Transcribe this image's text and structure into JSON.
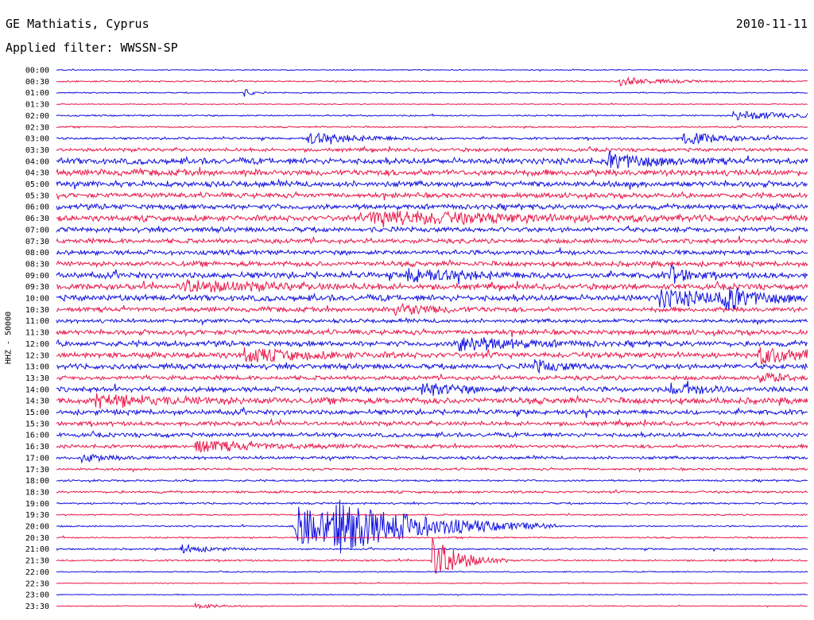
{
  "station": {
    "title": "GE Mathiatis, Cyprus",
    "date": "2010-11-11",
    "filter_label": "Applied filter: WWSSN-SP",
    "channel_label": "HHZ - 50000"
  },
  "colors": {
    "blue_trace": "#1010e0",
    "red_trace": "#e8184a",
    "text": "#000000",
    "background": "#ffffff"
  },
  "chart_data": {
    "type": "line",
    "title": "GE Mathiatis, Cyprus",
    "subtitle": "Applied filter: WWSSN-SP",
    "ylabel": "HHZ - 50000",
    "xlabel": "",
    "grid": false,
    "row_interval_minutes": 30,
    "row_labels": [
      "00:00",
      "00:30",
      "01:00",
      "01:30",
      "02:00",
      "02:30",
      "03:00",
      "03:30",
      "04:00",
      "04:30",
      "05:00",
      "05:30",
      "06:00",
      "06:30",
      "07:00",
      "07:30",
      "08:00",
      "08:30",
      "09:00",
      "09:30",
      "10:00",
      "10:30",
      "11:00",
      "11:30",
      "12:00",
      "12:30",
      "13:00",
      "13:30",
      "14:00",
      "14:30",
      "15:00",
      "15:30",
      "16:00",
      "16:30",
      "17:00",
      "17:30",
      "18:00",
      "18:30",
      "19:00",
      "19:30",
      "20:00",
      "20:30",
      "21:00",
      "21:30",
      "22:00",
      "22:30",
      "23:00",
      "23:30"
    ],
    "row_colors": [
      "blue",
      "red"
    ],
    "noise_levels": [
      0.5,
      0.8,
      0.6,
      0.5,
      0.8,
      0.8,
      1.2,
      1.8,
      3.2,
      3.2,
      3.0,
      2.6,
      2.8,
      3.0,
      2.6,
      2.4,
      2.4,
      2.6,
      3.2,
      3.0,
      3.2,
      2.4,
      2.0,
      2.6,
      2.8,
      3.0,
      2.8,
      2.2,
      2.6,
      3.2,
      2.6,
      2.2,
      2.2,
      1.8,
      1.6,
      1.2,
      1.0,
      1.2,
      1.0,
      0.8,
      0.8,
      0.8,
      0.9,
      0.9,
      0.6,
      0.5,
      0.5,
      0.5
    ],
    "events": [
      {
        "row": 1,
        "minute_offset": 22.5,
        "amplitude": 5,
        "duration_minutes": 1.5
      },
      {
        "row": 2,
        "minute_offset": 7.5,
        "amplitude": 5,
        "duration_minutes": 0.3
      },
      {
        "row": 4,
        "minute_offset": 27.0,
        "amplitude": 6,
        "duration_minutes": 2.5
      },
      {
        "row": 6,
        "minute_offset": 10.0,
        "amplitude": 7,
        "duration_minutes": 2.0
      },
      {
        "row": 6,
        "minute_offset": 25.0,
        "amplitude": 8,
        "duration_minutes": 1.5
      },
      {
        "row": 8,
        "minute_offset": 22.0,
        "amplitude": 10,
        "duration_minutes": 1.5
      },
      {
        "row": 13,
        "minute_offset": 12.5,
        "amplitude": 9,
        "duration_minutes": 5.0
      },
      {
        "row": 18,
        "minute_offset": 14.0,
        "amplitude": 8,
        "duration_minutes": 2.0
      },
      {
        "row": 18,
        "minute_offset": 24.5,
        "amplitude": 12,
        "duration_minutes": 0.6
      },
      {
        "row": 19,
        "minute_offset": 5.0,
        "amplitude": 7,
        "duration_minutes": 3.0
      },
      {
        "row": 20,
        "minute_offset": 24.0,
        "amplitude": 10,
        "duration_minutes": 2.5
      },
      {
        "row": 20,
        "minute_offset": 26.5,
        "amplitude": 14,
        "duration_minutes": 1.0
      },
      {
        "row": 21,
        "minute_offset": 13.5,
        "amplitude": 7,
        "duration_minutes": 1.5
      },
      {
        "row": 24,
        "minute_offset": 16.0,
        "amplitude": 10,
        "duration_minutes": 2.0
      },
      {
        "row": 25,
        "minute_offset": 7.5,
        "amplitude": 8,
        "duration_minutes": 2.0
      },
      {
        "row": 25,
        "minute_offset": 28.0,
        "amplitude": 9,
        "duration_minutes": 2.0
      },
      {
        "row": 26,
        "minute_offset": 19.0,
        "amplitude": 7,
        "duration_minutes": 1.0
      },
      {
        "row": 27,
        "minute_offset": 28.0,
        "amplitude": 7,
        "duration_minutes": 1.0
      },
      {
        "row": 28,
        "minute_offset": 14.5,
        "amplitude": 8,
        "duration_minutes": 1.5
      },
      {
        "row": 28,
        "minute_offset": 24.5,
        "amplitude": 7,
        "duration_minutes": 1.5
      },
      {
        "row": 29,
        "minute_offset": 1.5,
        "amplitude": 7,
        "duration_minutes": 2.5
      },
      {
        "row": 33,
        "minute_offset": 5.5,
        "amplitude": 7,
        "duration_minutes": 2.5
      },
      {
        "row": 34,
        "minute_offset": 1.0,
        "amplitude": 5,
        "duration_minutes": 1.0
      },
      {
        "row": 40,
        "minute_offset": 9.5,
        "amplitude": 26,
        "duration_minutes": 3.5
      },
      {
        "row": 40,
        "minute_offset": 11.0,
        "amplitude": 20,
        "duration_minutes": 3.0
      },
      {
        "row": 42,
        "minute_offset": 5.0,
        "amplitude": 6,
        "duration_minutes": 1.0
      },
      {
        "row": 43,
        "minute_offset": 15.0,
        "amplitude": 30,
        "duration_minutes": 1.0
      },
      {
        "row": 47,
        "minute_offset": 5.5,
        "amplitude": 4,
        "duration_minutes": 0.8
      }
    ]
  }
}
